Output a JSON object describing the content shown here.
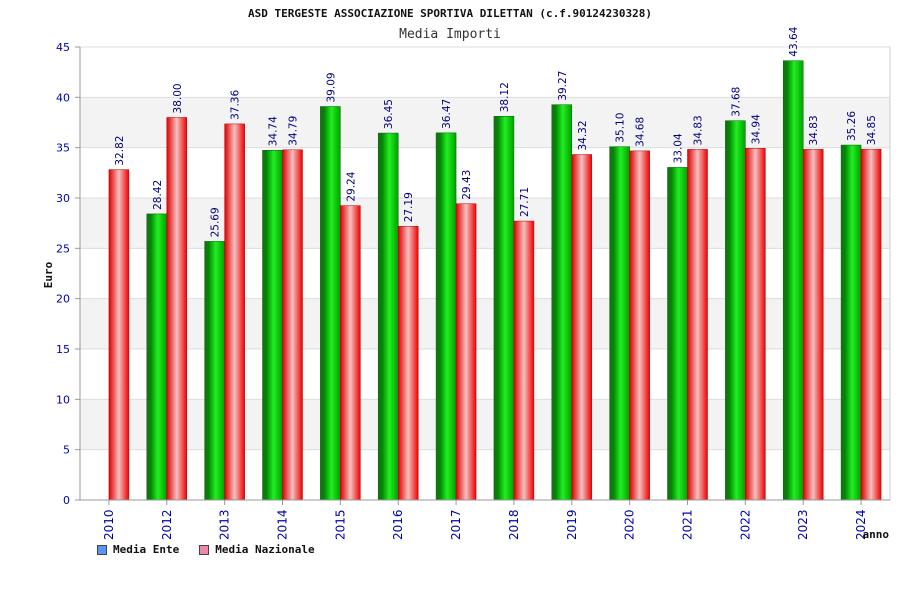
{
  "chart_data": {
    "type": "bar",
    "title": "ASD TERGESTE ASSOCIAZIONE SPORTIVA DILETTAN (c.f.90124230328)",
    "subtitle": "Media Importi",
    "xlabel": "anno",
    "ylabel": "Euro",
    "ylim": [
      0,
      45
    ],
    "yticks": [
      "0",
      "5",
      "10",
      "15",
      "20",
      "25",
      "30",
      "35",
      "40",
      "45"
    ],
    "grid": true,
    "categories": [
      "2010",
      "2012",
      "2013",
      "2014",
      "2015",
      "2016",
      "2017",
      "2018",
      "2019",
      "2020",
      "2021",
      "2022",
      "2023",
      "2024"
    ],
    "series": [
      {
        "name": "Media Ente",
        "color": "#00aa00",
        "values": [
          null,
          28.42,
          25.69,
          34.74,
          39.09,
          36.45,
          36.47,
          38.12,
          39.27,
          35.1,
          33.04,
          37.68,
          43.64,
          35.26
        ],
        "labels": [
          "",
          "28.42",
          "25.69",
          "34.74",
          "39.09",
          "36.45",
          "36.47",
          "38.12",
          "39.27",
          "35.10",
          "33.04",
          "37.68",
          "43.64",
          "35.26"
        ]
      },
      {
        "name": "Media Nazionale",
        "color": "#ee1111",
        "values": [
          32.82,
          38.0,
          37.36,
          34.79,
          29.24,
          27.19,
          29.43,
          27.71,
          34.32,
          34.68,
          34.83,
          34.94,
          34.83,
          34.85
        ],
        "labels": [
          "32.82",
          "38.00",
          "37.36",
          "34.79",
          "29.24",
          "27.19",
          "29.43",
          "27.71",
          "34.32",
          "34.68",
          "34.83",
          "34.94",
          "34.83",
          "34.85"
        ]
      }
    ],
    "legend": [
      {
        "label": "Media Ente",
        "color": "#5599ee"
      },
      {
        "label": "Media Nazionale",
        "color": "#ee88aa"
      }
    ],
    "legend_position": "bottom-left"
  }
}
